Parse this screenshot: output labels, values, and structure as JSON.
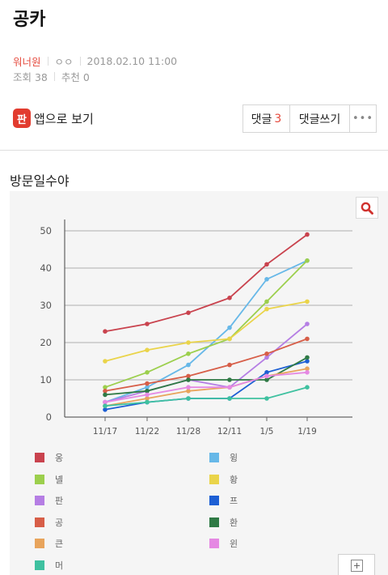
{
  "post": {
    "title": "공카",
    "author": "워너원",
    "author_sub": "ㅇㅇ",
    "date": "2018.02.10 11:00",
    "views_label": "조회 38",
    "recommend_label": "추천 0"
  },
  "toolbar": {
    "app_icon_text": "판",
    "app_label": "앱으로 보기",
    "comments_label": "댓글",
    "comments_count": "3",
    "write_label": "댓글쓰기",
    "more_label": "•••"
  },
  "section_title": "방문일수야",
  "icons": {
    "search": "search-icon",
    "expand": "expand-icon"
  },
  "colors": {
    "accent": "#e5483b",
    "app_icon_bg": "#e23c2f"
  },
  "chart_data": {
    "type": "line",
    "title": "",
    "xlabel": "",
    "ylabel": "",
    "categories": [
      "11/17",
      "11/22",
      "11/28",
      "12/11",
      "1/5",
      "1/19"
    ],
    "ylim": [
      0,
      50
    ],
    "yticks": [
      0,
      10,
      20,
      30,
      40,
      50
    ],
    "grid": true,
    "legend_position": "bottom",
    "series": [
      {
        "name": "옹",
        "color": "#c9434e",
        "values": [
          23,
          25,
          28,
          32,
          41,
          49
        ]
      },
      {
        "name": "윙",
        "color": "#67b8e8",
        "values": [
          4,
          8,
          14,
          24,
          37,
          42
        ]
      },
      {
        "name": "녤",
        "color": "#9ccf4d",
        "values": [
          8,
          12,
          17,
          21,
          31,
          42
        ]
      },
      {
        "name": "황",
        "color": "#ead44a",
        "values": [
          15,
          18,
          20,
          21,
          29,
          31
        ]
      },
      {
        "name": "판",
        "color": "#b57ee4",
        "values": [
          4,
          7,
          10,
          8,
          16,
          25
        ]
      },
      {
        "name": "프",
        "color": "#1d5fd4",
        "values": [
          2,
          4,
          5,
          5,
          12,
          15
        ]
      },
      {
        "name": "공",
        "color": "#d75e48",
        "values": [
          7,
          9,
          11,
          14,
          17,
          21
        ]
      },
      {
        "name": "환",
        "color": "#2f7a45",
        "values": [
          6,
          7,
          10,
          10,
          10,
          16
        ]
      },
      {
        "name": "큰",
        "color": "#e8a45c",
        "values": [
          3,
          5,
          7,
          8,
          11,
          13
        ]
      },
      {
        "name": "윈",
        "color": "#e589e3",
        "values": [
          4,
          6,
          8,
          8,
          11,
          12
        ]
      },
      {
        "name": "머",
        "color": "#3fc1a0",
        "values": [
          3,
          4,
          5,
          5,
          5,
          8
        ]
      }
    ]
  }
}
